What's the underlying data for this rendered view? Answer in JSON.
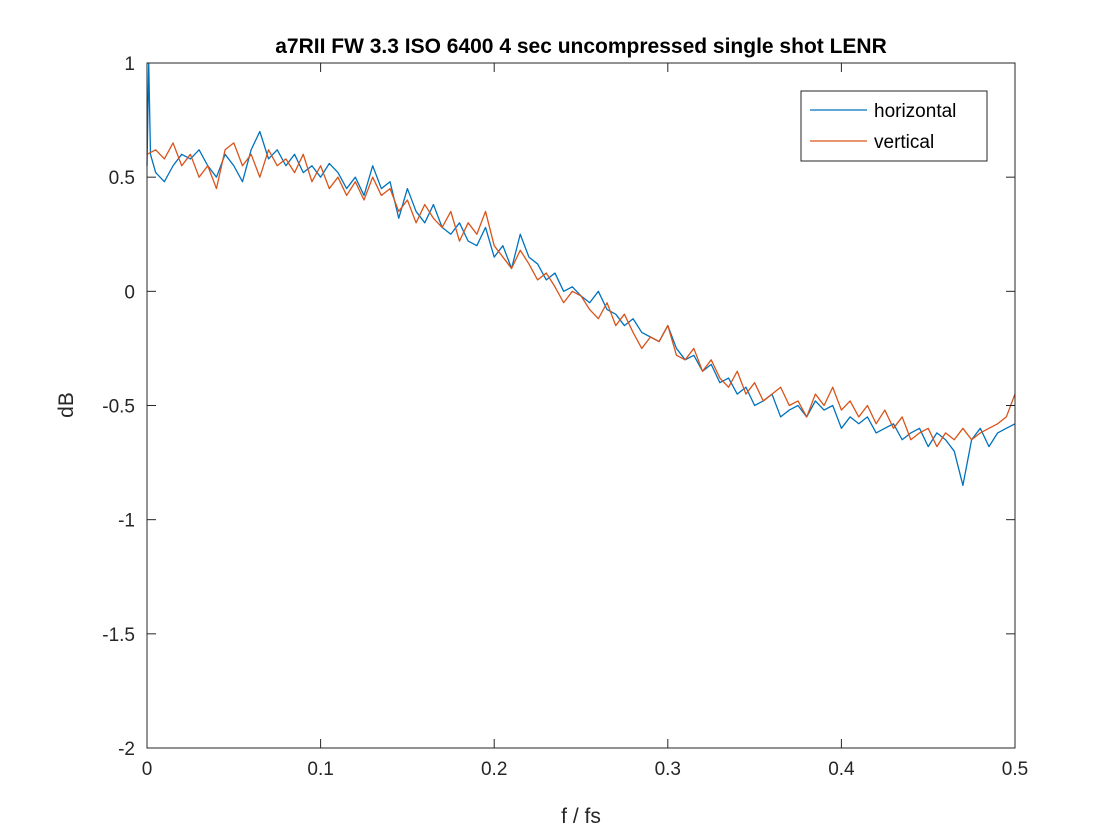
{
  "chart_data": {
    "type": "line",
    "title": "a7RII FW 3.3 ISO 6400 4 sec uncompressed single shot LENR",
    "xlabel": "f / fs",
    "ylabel": "dB",
    "xlim": [
      0,
      0.5
    ],
    "ylim": [
      -2,
      1
    ],
    "xticks": [
      0,
      0.1,
      0.2,
      0.3,
      0.4,
      0.5
    ],
    "xtick_labels": [
      "0",
      "0.1",
      "0.2",
      "0.3",
      "0.4",
      "0.5"
    ],
    "yticks": [
      -2,
      -1.5,
      -1,
      -0.5,
      0,
      0.5,
      1
    ],
    "ytick_labels": [
      "-2",
      "-1.5",
      "-1",
      "-0.5",
      "0",
      "0.5",
      "1"
    ],
    "grid": false,
    "legend_position": "top-right",
    "series": [
      {
        "name": "horizontal",
        "color": "#0072BD",
        "x": [
          0,
          0.001,
          0.002,
          0.005,
          0.01,
          0.015,
          0.02,
          0.025,
          0.03,
          0.035,
          0.04,
          0.045,
          0.05,
          0.055,
          0.06,
          0.065,
          0.07,
          0.075,
          0.08,
          0.085,
          0.09,
          0.095,
          0.1,
          0.105,
          0.11,
          0.115,
          0.12,
          0.125,
          0.13,
          0.135,
          0.14,
          0.145,
          0.15,
          0.155,
          0.16,
          0.165,
          0.17,
          0.175,
          0.18,
          0.185,
          0.19,
          0.195,
          0.2,
          0.205,
          0.21,
          0.215,
          0.22,
          0.225,
          0.23,
          0.235,
          0.24,
          0.245,
          0.25,
          0.255,
          0.26,
          0.265,
          0.27,
          0.275,
          0.28,
          0.285,
          0.29,
          0.295,
          0.3,
          0.305,
          0.31,
          0.315,
          0.32,
          0.325,
          0.33,
          0.335,
          0.34,
          0.345,
          0.35,
          0.355,
          0.36,
          0.365,
          0.37,
          0.375,
          0.38,
          0.385,
          0.39,
          0.395,
          0.4,
          0.405,
          0.41,
          0.415,
          0.42,
          0.425,
          0.43,
          0.435,
          0.44,
          0.445,
          0.45,
          0.455,
          0.46,
          0.465,
          0.47,
          0.475,
          0.48,
          0.485,
          0.49,
          0.495,
          0.5
        ],
        "y": [
          0.55,
          1.0,
          0.6,
          0.52,
          0.48,
          0.55,
          0.6,
          0.58,
          0.62,
          0.55,
          0.5,
          0.6,
          0.55,
          0.48,
          0.62,
          0.7,
          0.58,
          0.62,
          0.55,
          0.6,
          0.52,
          0.55,
          0.5,
          0.56,
          0.52,
          0.45,
          0.5,
          0.42,
          0.55,
          0.45,
          0.48,
          0.32,
          0.45,
          0.35,
          0.3,
          0.38,
          0.28,
          0.25,
          0.3,
          0.22,
          0.2,
          0.28,
          0.15,
          0.2,
          0.1,
          0.25,
          0.15,
          0.12,
          0.05,
          0.08,
          0.0,
          0.02,
          -0.02,
          -0.05,
          0.0,
          -0.08,
          -0.1,
          -0.15,
          -0.12,
          -0.18,
          -0.2,
          -0.22,
          -0.15,
          -0.25,
          -0.3,
          -0.28,
          -0.35,
          -0.32,
          -0.4,
          -0.38,
          -0.45,
          -0.42,
          -0.5,
          -0.48,
          -0.45,
          -0.55,
          -0.52,
          -0.5,
          -0.55,
          -0.48,
          -0.52,
          -0.5,
          -0.6,
          -0.55,
          -0.58,
          -0.55,
          -0.62,
          -0.6,
          -0.58,
          -0.65,
          -0.62,
          -0.6,
          -0.68,
          -0.62,
          -0.65,
          -0.7,
          -0.85,
          -0.65,
          -0.6,
          -0.68,
          -0.62,
          -0.6,
          -0.58
        ]
      },
      {
        "name": "vertical",
        "color": "#D95319",
        "x": [
          0,
          0.005,
          0.01,
          0.015,
          0.02,
          0.025,
          0.03,
          0.035,
          0.04,
          0.045,
          0.05,
          0.055,
          0.06,
          0.065,
          0.07,
          0.075,
          0.08,
          0.085,
          0.09,
          0.095,
          0.1,
          0.105,
          0.11,
          0.115,
          0.12,
          0.125,
          0.13,
          0.135,
          0.14,
          0.145,
          0.15,
          0.155,
          0.16,
          0.165,
          0.17,
          0.175,
          0.18,
          0.185,
          0.19,
          0.195,
          0.2,
          0.205,
          0.21,
          0.215,
          0.22,
          0.225,
          0.23,
          0.235,
          0.24,
          0.245,
          0.25,
          0.255,
          0.26,
          0.265,
          0.27,
          0.275,
          0.28,
          0.285,
          0.29,
          0.295,
          0.3,
          0.305,
          0.31,
          0.315,
          0.32,
          0.325,
          0.33,
          0.335,
          0.34,
          0.345,
          0.35,
          0.355,
          0.36,
          0.365,
          0.37,
          0.375,
          0.38,
          0.385,
          0.39,
          0.395,
          0.4,
          0.405,
          0.41,
          0.415,
          0.42,
          0.425,
          0.43,
          0.435,
          0.44,
          0.445,
          0.45,
          0.455,
          0.46,
          0.465,
          0.47,
          0.475,
          0.48,
          0.485,
          0.49,
          0.495,
          0.5
        ],
        "y": [
          0.6,
          0.62,
          0.58,
          0.65,
          0.55,
          0.6,
          0.5,
          0.55,
          0.45,
          0.62,
          0.65,
          0.55,
          0.6,
          0.5,
          0.62,
          0.55,
          0.58,
          0.52,
          0.6,
          0.48,
          0.55,
          0.45,
          0.5,
          0.42,
          0.48,
          0.4,
          0.5,
          0.42,
          0.45,
          0.35,
          0.4,
          0.3,
          0.38,
          0.32,
          0.28,
          0.35,
          0.22,
          0.3,
          0.25,
          0.35,
          0.2,
          0.15,
          0.1,
          0.18,
          0.12,
          0.05,
          0.08,
          0.02,
          -0.05,
          0.0,
          -0.02,
          -0.08,
          -0.12,
          -0.05,
          -0.15,
          -0.1,
          -0.18,
          -0.25,
          -0.2,
          -0.22,
          -0.15,
          -0.28,
          -0.3,
          -0.25,
          -0.35,
          -0.3,
          -0.38,
          -0.42,
          -0.35,
          -0.45,
          -0.4,
          -0.48,
          -0.45,
          -0.42,
          -0.5,
          -0.48,
          -0.55,
          -0.45,
          -0.5,
          -0.42,
          -0.52,
          -0.48,
          -0.55,
          -0.5,
          -0.58,
          -0.52,
          -0.6,
          -0.55,
          -0.65,
          -0.62,
          -0.6,
          -0.68,
          -0.62,
          -0.65,
          -0.6,
          -0.65,
          -0.62,
          -0.6,
          -0.58,
          -0.55,
          -0.45
        ]
      }
    ]
  }
}
